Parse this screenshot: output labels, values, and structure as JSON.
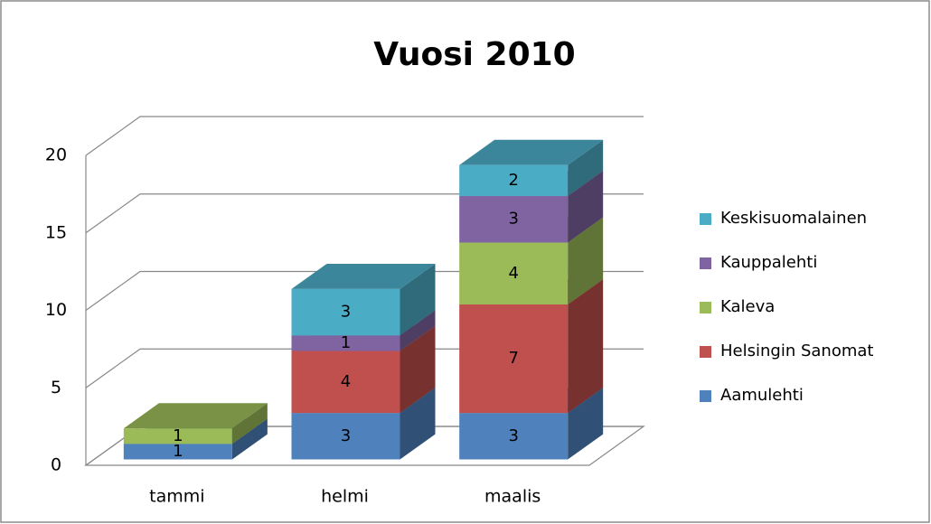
{
  "chart_data": {
    "type": "bar3d_stacked",
    "title": "Vuosi 2010",
    "categories": [
      "tammi",
      "helmi",
      "maalis"
    ],
    "series": [
      {
        "name": "Aamulehti",
        "color": "#4f81bd",
        "values": [
          1,
          3,
          3
        ]
      },
      {
        "name": "Helsingin Sanomat",
        "color": "#c0504d",
        "values": [
          null,
          4,
          7
        ]
      },
      {
        "name": "Kaleva",
        "color": "#9bbb59",
        "values": [
          1,
          null,
          4
        ]
      },
      {
        "name": "Kauppalehti",
        "color": "#8064a2",
        "values": [
          null,
          1,
          3
        ]
      },
      {
        "name": "Keskisuomalainen",
        "color": "#4bacc6",
        "values": [
          null,
          3,
          2
        ]
      }
    ],
    "ylim": [
      0,
      20
    ],
    "yticks": [
      0,
      5,
      10,
      15,
      20
    ],
    "grid": true,
    "legend": "right"
  }
}
